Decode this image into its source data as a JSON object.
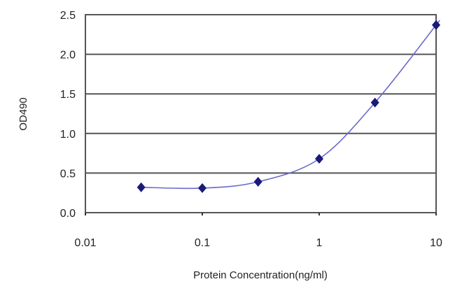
{
  "chart_data": {
    "type": "line",
    "title": "",
    "xlabel": "Protein Concentration(ng/ml)",
    "ylabel": "OD490",
    "x_scale": "log",
    "xlim": [
      0.01,
      10
    ],
    "ylim": [
      0,
      2.5
    ],
    "x_ticks": [
      "0.01",
      "0.1",
      "1",
      "10"
    ],
    "x_tick_values": [
      0.01,
      0.1,
      1,
      10
    ],
    "y_ticks": [
      "0.0",
      "0.5",
      "1.0",
      "1.5",
      "2.0",
      "2.5"
    ],
    "y_tick_values": [
      0,
      0.5,
      1.0,
      1.5,
      2.0,
      2.5
    ],
    "grid": "horizontal",
    "legend": "none",
    "series": [
      {
        "x": [
          0.03,
          0.1,
          0.3,
          1,
          3,
          10
        ],
        "y": [
          0.32,
          0.31,
          0.39,
          0.68,
          1.39,
          2.37
        ],
        "marker": "diamond",
        "color": "#1a1a7a",
        "line_color": "#6a6ad0"
      }
    ]
  }
}
